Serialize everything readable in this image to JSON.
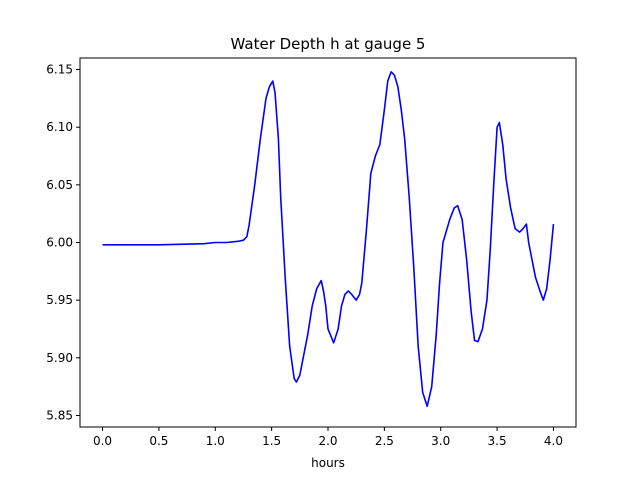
{
  "chart_data": {
    "type": "line",
    "title": "Water Depth h at gauge 5",
    "xlabel": "hours",
    "ylabel": "",
    "xlim": [
      -0.2,
      4.2
    ],
    "ylim": [
      5.84,
      6.16
    ],
    "xticks": [
      0.0,
      0.5,
      1.0,
      1.5,
      2.0,
      2.5,
      3.0,
      3.5,
      4.0
    ],
    "xtick_labels": [
      "0.0",
      "0.5",
      "1.0",
      "1.5",
      "2.0",
      "2.5",
      "3.0",
      "3.5",
      "4.0"
    ],
    "yticks": [
      5.85,
      5.9,
      5.95,
      6.0,
      6.05,
      6.1,
      6.15
    ],
    "ytick_labels": [
      "5.85",
      "5.90",
      "5.95",
      "6.00",
      "6.05",
      "6.10",
      "6.15"
    ],
    "grid": false,
    "line_color": "#0000ff",
    "series": [
      {
        "x": [
          0.0,
          0.5,
          0.9,
          1.0,
          1.1,
          1.2,
          1.25,
          1.28,
          1.3,
          1.35,
          1.4,
          1.45,
          1.48,
          1.51,
          1.53,
          1.56,
          1.58,
          1.62,
          1.66,
          1.7,
          1.72,
          1.75,
          1.78,
          1.82,
          1.86,
          1.9,
          1.94,
          1.96,
          1.98,
          2.0,
          2.05,
          2.09,
          2.12,
          2.15,
          2.18,
          2.21,
          2.25,
          2.28,
          2.3,
          2.34,
          2.38,
          2.42,
          2.46,
          2.5,
          2.53,
          2.56,
          2.59,
          2.62,
          2.65,
          2.68,
          2.72,
          2.76,
          2.8,
          2.84,
          2.88,
          2.92,
          2.96,
          2.99,
          3.02,
          3.05,
          3.08,
          3.12,
          3.15,
          3.19,
          3.23,
          3.27,
          3.3,
          3.33,
          3.37,
          3.41,
          3.44,
          3.47,
          3.5,
          3.52,
          3.55,
          3.58,
          3.62,
          3.66,
          3.7,
          3.73,
          3.76,
          3.78,
          3.81,
          3.84,
          3.88,
          3.91,
          3.94,
          3.97,
          4.0
        ],
        "y": [
          5.998,
          5.998,
          5.999,
          6.0,
          6.0,
          6.001,
          6.002,
          6.005,
          6.015,
          6.05,
          6.09,
          6.125,
          6.135,
          6.14,
          6.13,
          6.09,
          6.04,
          5.97,
          5.91,
          5.882,
          5.879,
          5.885,
          5.9,
          5.92,
          5.945,
          5.96,
          5.967,
          5.958,
          5.945,
          5.925,
          5.913,
          5.925,
          5.945,
          5.955,
          5.958,
          5.955,
          5.95,
          5.955,
          5.965,
          6.01,
          6.06,
          6.075,
          6.085,
          6.115,
          6.14,
          6.148,
          6.145,
          6.135,
          6.115,
          6.09,
          6.04,
          5.98,
          5.91,
          5.87,
          5.858,
          5.875,
          5.92,
          5.965,
          6.0,
          6.01,
          6.02,
          6.03,
          6.032,
          6.02,
          5.985,
          5.94,
          5.915,
          5.914,
          5.925,
          5.95,
          5.995,
          6.05,
          6.1,
          6.104,
          6.085,
          6.055,
          6.03,
          6.012,
          6.009,
          6.012,
          6.016,
          6.0,
          5.985,
          5.97,
          5.958,
          5.95,
          5.96,
          5.985,
          6.016
        ]
      }
    ]
  }
}
